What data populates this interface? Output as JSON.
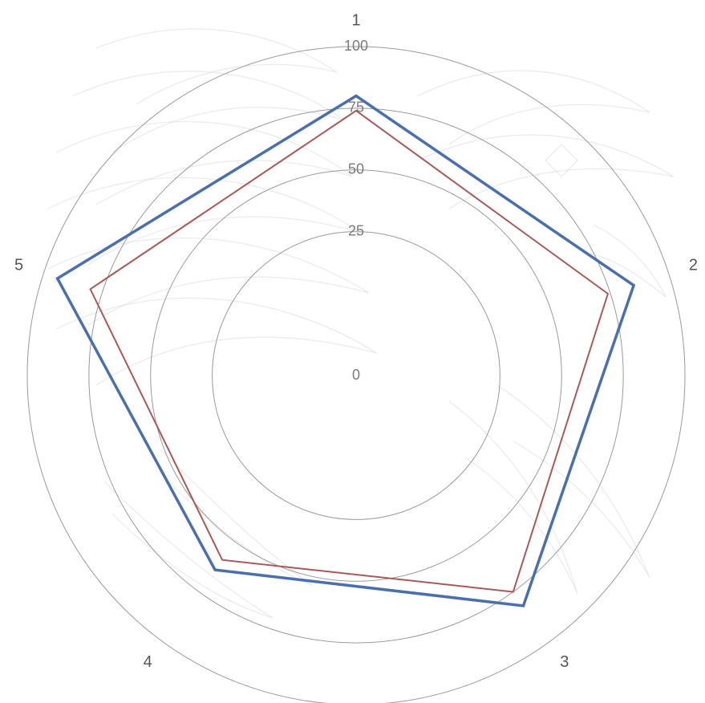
{
  "chart_data": {
    "type": "radar",
    "axes": [
      "1",
      "2",
      "3",
      "4",
      "5"
    ],
    "rlim": [
      0,
      100
    ],
    "ring_ticks": [
      "0",
      "25",
      "50",
      "75",
      "100"
    ],
    "ring_values": [
      0,
      25,
      50,
      75,
      100
    ],
    "grid": true,
    "legend": "none",
    "series": [
      {
        "values": [
          80,
          85,
          82,
          64,
          94
        ],
        "color": "#4a6fae"
      },
      {
        "values": [
          74,
          74,
          75,
          59,
          80
        ],
        "color": "#a85a5a"
      }
    ]
  },
  "background_icon": "eagle-wings-watermark"
}
